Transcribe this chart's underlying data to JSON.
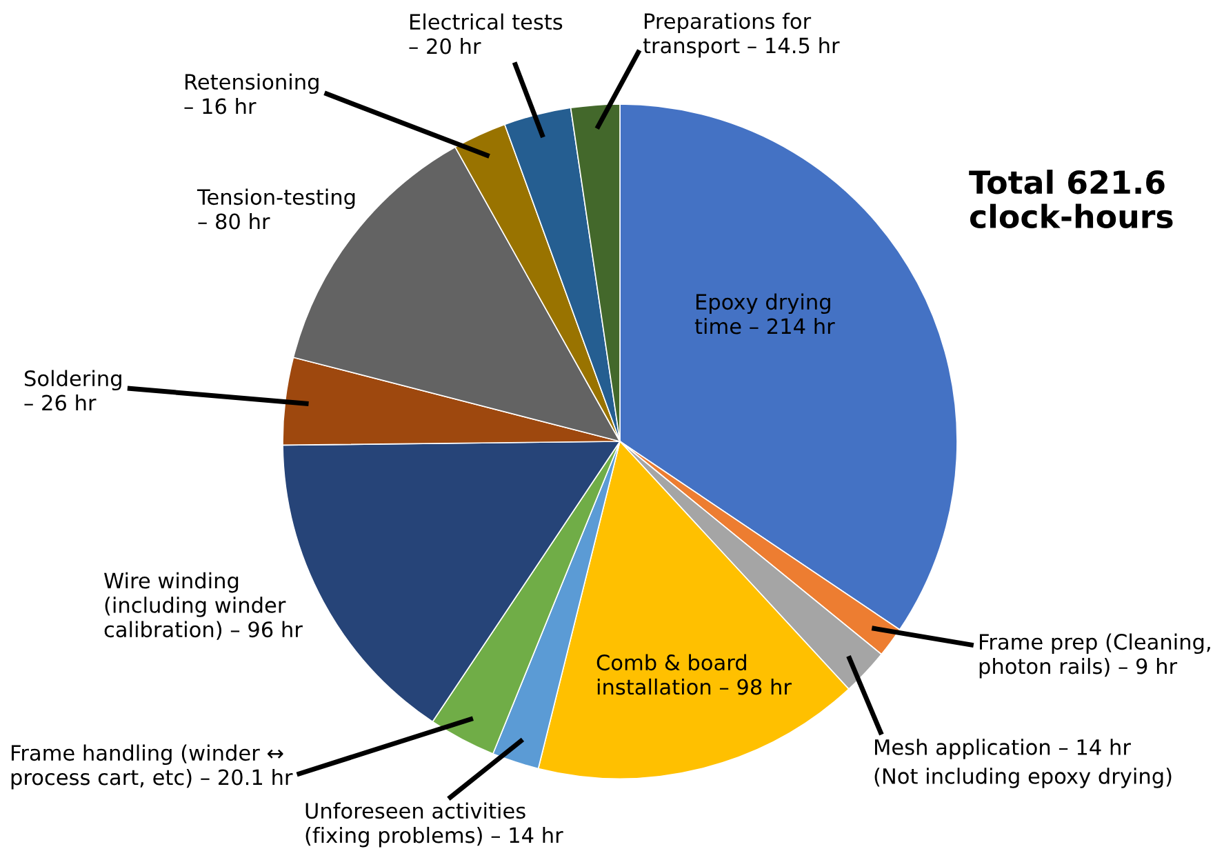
{
  "chart_data": {
    "type": "pie",
    "categories": [
      "Epoxy drying\ntime –",
      "Frame prep (Cleaning,\nphoton rails) –",
      "Mesh application –",
      "Comb & board\ninstallation –",
      "Unforeseen activities\n(fixing problems) –",
      "Frame handling (winder ↔\nprocess cart, etc) –",
      "Wire winding\n(including winder\ncalibration) –",
      "Soldering\n–",
      "Tension-testing\n–",
      "Retensioning\n–",
      "Electrical tests\n–",
      "Preparations for\ntransport –"
    ],
    "values": [
      214,
      9,
      14,
      98,
      14,
      20.1,
      96,
      26,
      80,
      16,
      20,
      14.5
    ],
    "value_labels": [
      "214 hr",
      "9 hr",
      "14 hr",
      "98 hr",
      "14 hr",
      "20.1 hr",
      "96 hr",
      "26 hr",
      "80 hr",
      "16 hr",
      "20 hr",
      "14.5 hr"
    ],
    "colors": [
      "#4472c4",
      "#ed7d31",
      "#a5a5a5",
      "#ffc000",
      "#5b9bd5",
      "#70ad47",
      "#264478",
      "#9e480e",
      "#636363",
      "#997300",
      "#255e91",
      "#43682b"
    ],
    "annotations": [
      "Total 621.6\nclock-hours",
      "(Not including epoxy drying)"
    ]
  }
}
